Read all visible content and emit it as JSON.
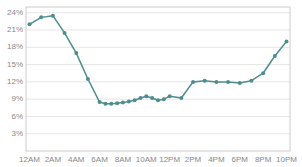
{
  "chart_data": {
    "type": "line",
    "x": [
      0,
      1,
      2,
      3,
      4,
      5,
      6,
      6.5,
      7,
      7.5,
      8,
      8.5,
      9,
      9.5,
      10,
      10.5,
      11,
      11.5,
      12,
      13,
      14,
      15,
      16,
      17,
      18,
      19,
      20,
      21,
      22
    ],
    "values": [
      22.0,
      23.2,
      23.5,
      20.5,
      17.0,
      12.5,
      8.5,
      8.2,
      8.2,
      8.3,
      8.4,
      8.6,
      8.8,
      9.2,
      9.5,
      9.2,
      8.8,
      9.0,
      9.5,
      9.2,
      12.0,
      12.2,
      12.0,
      12.0,
      11.8,
      12.2,
      13.5,
      16.5,
      19.0
    ],
    "color": "#4e8d8f",
    "marker": "circle",
    "xlim": [
      -0.3,
      22.3
    ],
    "xticks": [
      {
        "value": 0,
        "label": "12AM"
      },
      {
        "value": 2,
        "label": "2AM"
      },
      {
        "value": 4,
        "label": "4AM"
      },
      {
        "value": 6,
        "label": "6AM"
      },
      {
        "value": 8,
        "label": "8AM"
      },
      {
        "value": 10,
        "label": "10AM"
      },
      {
        "value": 12,
        "label": "12PM"
      },
      {
        "value": 14,
        "label": "2PM"
      },
      {
        "value": 16,
        "label": "4PM"
      },
      {
        "value": 18,
        "label": "6PM"
      },
      {
        "value": 20,
        "label": "8PM"
      },
      {
        "value": 22,
        "label": "10PM"
      }
    ],
    "ylim": [
      0,
      25
    ],
    "yticks": [
      {
        "value": 3,
        "label": "3%"
      },
      {
        "value": 6,
        "label": "6%"
      },
      {
        "value": 9,
        "label": "9%"
      },
      {
        "value": 12,
        "label": "12%"
      },
      {
        "value": 15,
        "label": "15%"
      },
      {
        "value": 18,
        "label": "18%"
      },
      {
        "value": 21,
        "label": "21%"
      },
      {
        "value": 24,
        "label": "24%"
      }
    ],
    "grid": true
  }
}
